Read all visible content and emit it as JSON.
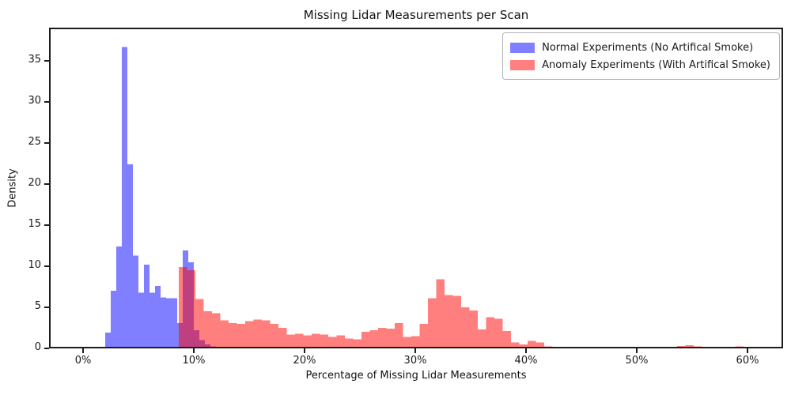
{
  "title": "Missing Lidar Measurements per Scan",
  "xlabel": "Percentage of Missing Lidar Measurements",
  "ylabel": "Density",
  "x_ticks": [
    "0%",
    "10%",
    "20%",
    "30%",
    "40%",
    "50%",
    "60%"
  ],
  "y_ticks": [
    0,
    5,
    10,
    15,
    20,
    25,
    30,
    35
  ],
  "legend": [
    {
      "label": "Normal Experiments (No Artifical Smoke)",
      "color": "#7f7fff"
    },
    {
      "label": "Anomaly Experiments (With Artifical Smoke)",
      "color": "#ff7f7f"
    }
  ],
  "chart_data": {
    "type": "bar",
    "subtype": "overlaid-histograms",
    "title": "Missing Lidar Measurements per Scan",
    "xlabel": "Percentage of Missing Lidar Measurements",
    "ylabel": "Density",
    "xlim_percent": [
      -3,
      63.3
    ],
    "ylim": [
      0,
      39
    ],
    "grid": false,
    "legend_position": "upper right",
    "series": [
      {
        "name": "Normal Experiments (No Artifical Smoke)",
        "fill": "rgba(0,0,255,0.5)",
        "bin_start_percent": 2.0,
        "bin_width_percent": 0.5,
        "densities": [
          1.9,
          7.0,
          12.4,
          36.7,
          22.4,
          11.3,
          6.8,
          10.2,
          6.8,
          7.6,
          6.2,
          6.1,
          6.1,
          3.1,
          11.9,
          10.5,
          2.2,
          1.0,
          0.5,
          0.25,
          0.12,
          0.06,
          0.04,
          0.02
        ]
      },
      {
        "name": "Anomaly Experiments (With Artifical Smoke)",
        "fill": "rgba(255,0,0,0.5)",
        "bin_start_percent": 8.625,
        "bin_width_percent": 0.75,
        "densities": [
          9.9,
          9.5,
          6.0,
          4.5,
          4.3,
          3.4,
          3.1,
          3.0,
          3.3,
          3.5,
          3.4,
          3.0,
          2.5,
          1.7,
          1.8,
          1.6,
          1.8,
          1.7,
          1.4,
          1.6,
          1.2,
          1.1,
          2.0,
          2.2,
          2.5,
          2.4,
          3.1,
          1.4,
          1.5,
          3.0,
          6.1,
          8.4,
          6.5,
          6.4,
          5.0,
          4.6,
          2.3,
          3.8,
          3.6,
          2.1,
          0.7,
          0.5,
          0.9,
          0.7,
          0.25,
          0.15,
          0.1,
          0.12,
          0.1,
          0.05,
          0.04,
          0.06,
          0.12,
          0.08,
          0.04,
          0.05,
          0.15,
          0.2,
          0.2,
          0.1,
          0.3,
          0.4,
          0.25,
          0.15,
          0.18,
          0.12,
          0.1,
          0.25
        ]
      }
    ]
  }
}
